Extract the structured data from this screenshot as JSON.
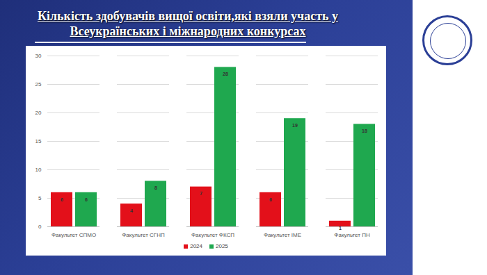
{
  "chart_data": {
    "type": "bar",
    "title": "Кількість здобувачів вищої освіти,які взяли участь у Всеукраїнських і міжнародних конкурсах",
    "categories": [
      "Факультет СПМО",
      "Факультет СГНП",
      "Факультет ФКСП",
      "Факультет ІМЕ",
      "Факультет ПН"
    ],
    "series": [
      {
        "name": "2024",
        "color": "#e3101a",
        "values": [
          6,
          4,
          7,
          6,
          1
        ]
      },
      {
        "name": "2025",
        "color": "#1fa84f",
        "values": [
          6,
          8,
          28,
          19,
          18
        ]
      }
    ],
    "ylim": [
      0,
      30
    ],
    "yticks": [
      0,
      5,
      10,
      15,
      20,
      25,
      30
    ],
    "grid": true,
    "data_labels": true,
    "legend": "bottom"
  }
}
